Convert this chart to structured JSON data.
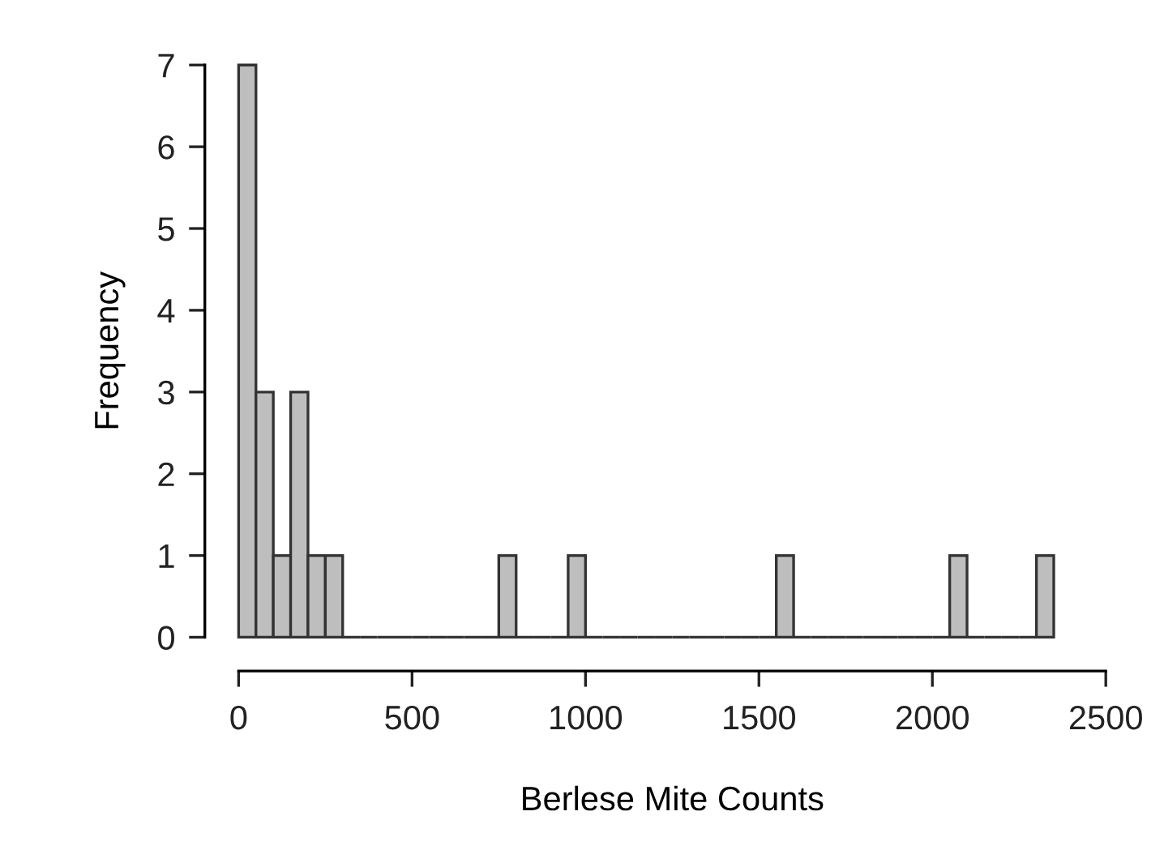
{
  "chart_data": {
    "type": "histogram",
    "xlabel": "Berlese Mite Counts",
    "ylabel": "Frequency",
    "bins": [
      0,
      50,
      100,
      150,
      200,
      250,
      300,
      350,
      400,
      450,
      500,
      550,
      600,
      650,
      700,
      750,
      800,
      850,
      900,
      950,
      1000,
      1050,
      1100,
      1150,
      1200,
      1250,
      1300,
      1350,
      1400,
      1450,
      1500,
      1550,
      1600,
      1650,
      1700,
      1750,
      1800,
      1850,
      1900,
      1950,
      2000,
      2050,
      2100,
      2150,
      2200,
      2250,
      2300,
      2350
    ],
    "values": [
      7,
      3,
      1,
      3,
      1,
      1,
      0,
      0,
      0,
      0,
      0,
      0,
      0,
      0,
      0,
      1,
      0,
      0,
      0,
      1,
      0,
      0,
      0,
      0,
      0,
      0,
      0,
      0,
      0,
      0,
      0,
      1,
      0,
      0,
      0,
      0,
      0,
      0,
      0,
      0,
      0,
      1,
      0,
      0,
      0,
      0,
      1
    ],
    "colors": [
      "#bebebe",
      "#bebebe",
      "#bebebe",
      "#bebebe",
      "#bebebe",
      "#bebebe",
      "#333333",
      "#333333",
      "#333333",
      "#333333",
      "#333333",
      "#333333",
      "#333333",
      "#333333",
      "#333333",
      "#bebebe",
      "#333333",
      "#333333",
      "#333333",
      "#bebebe",
      "#333333",
      "#333333",
      "#333333",
      "#333333",
      "#333333",
      "#333333",
      "#333333",
      "#333333",
      "#333333",
      "#333333",
      "#333333",
      "#bebebe",
      "#333333",
      "#333333",
      "#333333",
      "#333333",
      "#333333",
      "#333333",
      "#333333",
      "#333333",
      "#333333",
      "#bebebe",
      "#333333",
      "#333333",
      "#333333",
      "#333333",
      "#bebebe"
    ],
    "xlim": [
      0,
      2500
    ],
    "ylim": [
      0,
      7
    ],
    "xticks": [
      0,
      500,
      1000,
      1500,
      2000,
      2500
    ],
    "yticks": [
      0,
      1,
      2,
      3,
      4,
      5,
      6,
      7
    ],
    "grid": false
  }
}
